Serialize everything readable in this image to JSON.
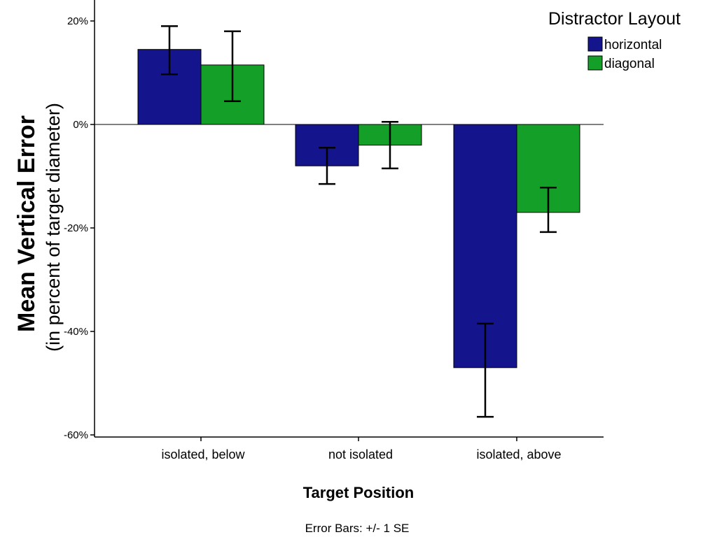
{
  "chart_data": {
    "type": "bar",
    "categories": [
      "isolated, below",
      "not isolated",
      "isolated, above"
    ],
    "series": [
      {
        "name": "horizontal",
        "color": "#14148c",
        "values": [
          14.5,
          -8,
          -47
        ],
        "error_low": [
          9.7,
          -11.5,
          -56.5
        ],
        "error_high": [
          19,
          -4.5,
          -38.5
        ]
      },
      {
        "name": "diagonal",
        "color": "#14a028",
        "values": [
          11.5,
          -4,
          -17
        ],
        "error_low": [
          4.5,
          -8.5,
          -20.8
        ],
        "error_high": [
          18,
          0.5,
          -12.2
        ]
      }
    ],
    "ylim": [
      -60,
      25
    ],
    "yticks": [
      -60,
      -40,
      -20,
      0,
      20
    ],
    "ytick_labels": [
      "-60%",
      "-40%",
      "-20%",
      "0%",
      "20%"
    ],
    "xlabel": "Target Position",
    "ylabel": "Mean Vertical Error",
    "ylabel_sub": "(in percent of target diameter)",
    "legend_title": "Distractor Layout",
    "legend_position": "top-right",
    "footnote": "Error Bars: +/- 1 SE",
    "grid": false
  }
}
